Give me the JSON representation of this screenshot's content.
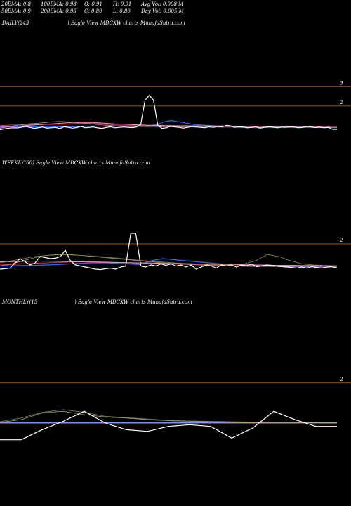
{
  "header": {
    "row1": [
      "20EMA: 0.8",
      "100EMA: 0.98",
      "O: 0.91",
      "H: 0.91",
      "Avg Vol: 0.008 M"
    ],
    "row2": [
      "50EMA: 0.9",
      "200EMA: 0.95",
      "C: 0.80",
      "L: 0.80",
      "Day Vol: 0.005 M"
    ]
  },
  "colors": {
    "background": "#000000",
    "price": "#ffffff",
    "reference_line": "#b8742a",
    "ema_blue": "#2f6bff",
    "ema_red": "#e0302f",
    "ema_pink": "#ff8fd0",
    "ema_gray": "#9a9a9a",
    "ema_olive": "#8c8c3a"
  },
  "chart_data": [
    {
      "type": "line",
      "panel": "daily",
      "title_left": "DAILY(243",
      "title_right": ") Eagle   View  MDCXW charts MunafaSutra.com",
      "y_ticks": [
        "3",
        "2"
      ],
      "reference_levels": [
        3,
        2
      ],
      "series": [
        {
          "role": "price",
          "values": [
            0.78,
            0.82,
            0.86,
            0.88,
            0.87,
            0.9,
            0.95,
            0.9,
            0.85,
            0.88,
            0.92,
            0.86,
            0.88,
            0.9,
            0.84,
            0.93,
            0.9,
            0.86,
            0.89,
            0.95,
            0.88,
            0.9,
            0.92,
            0.87,
            0.85,
            0.9,
            0.93,
            0.88,
            0.9,
            0.92,
            0.9,
            0.89,
            0.92,
            1.05,
            2.3,
            2.55,
            2.3,
            1.0,
            0.85,
            0.88,
            0.95,
            0.92,
            0.9,
            0.86,
            0.9,
            0.95,
            0.92,
            0.9,
            0.88,
            0.93,
            0.9,
            0.95,
            0.92,
            1.0,
            0.98,
            0.9,
            0.93,
            0.92,
            0.88,
            0.9,
            0.92,
            0.86,
            0.9,
            0.93,
            0.91,
            0.88,
            0.92,
            0.9,
            0.94,
            0.92,
            0.88,
            0.9,
            0.95,
            0.92,
            0.89,
            0.91,
            0.88,
            0.9,
            0.8,
            0.8
          ]
        },
        {
          "role": "ema_blue",
          "values": [
            0.95,
            0.94,
            0.93,
            0.93,
            0.92,
            0.92,
            0.92,
            0.91,
            0.91,
            0.92,
            0.92,
            0.93,
            0.93,
            0.93,
            0.94,
            0.95,
            0.96,
            0.97,
            0.96,
            0.97,
            0.97,
            0.97,
            0.96,
            0.96,
            0.96,
            0.96,
            0.98,
            1.02,
            1.1,
            1.2,
            1.25,
            1.2,
            1.15,
            1.1,
            1.05,
            1.02,
            1.0,
            0.99,
            0.97,
            0.97,
            0.96,
            0.96,
            0.95,
            0.95,
            0.95,
            0.95,
            0.94,
            0.94,
            0.94,
            0.93,
            0.93,
            0.93,
            0.92,
            0.92,
            0.92,
            0.91,
            0.9,
            0.9,
            0.89,
            0.88
          ]
        },
        {
          "role": "ema_red",
          "values": [
            0.99,
            1.0,
            1.02,
            1.02,
            1.03,
            1.03,
            1.04,
            1.04,
            1.05,
            1.05,
            1.06,
            1.06,
            1.08,
            1.1,
            1.12,
            1.13,
            1.12,
            1.1,
            1.07,
            1.05,
            1.03,
            1.02,
            1.01,
            1.0,
            1.0,
            0.99,
            0.99,
            0.99,
            0.98,
            0.98,
            0.98,
            0.98,
            0.97,
            0.97,
            0.97,
            0.97,
            0.96,
            0.96,
            0.96,
            0.96,
            0.96,
            0.96,
            0.96,
            0.95,
            0.95,
            0.95,
            0.95,
            0.95,
            0.95,
            0.95,
            0.95,
            0.95,
            0.95,
            0.95,
            0.95,
            0.95,
            0.95,
            0.95,
            0.95,
            0.95
          ]
        },
        {
          "role": "ema_pink",
          "values": [
            0.9,
            0.92,
            0.94,
            0.96,
            0.98,
            1.0,
            1.02,
            1.04,
            1.06,
            1.08,
            1.1,
            1.12,
            1.14,
            1.15,
            1.16,
            1.16,
            1.15,
            1.14,
            1.12,
            1.1,
            1.08,
            1.07,
            1.06,
            1.04,
            1.03,
            1.02,
            1.01,
            1.0,
            1.0,
            0.99,
            0.99,
            0.98,
            0.98,
            0.98,
            0.98,
            0.97,
            0.97,
            0.97,
            0.97,
            0.97,
            0.96,
            0.96,
            0.96,
            0.96,
            0.96,
            0.96,
            0.96,
            0.96,
            0.96,
            0.96,
            0.96,
            0.96,
            0.96,
            0.96,
            0.96,
            0.96,
            0.96,
            0.96,
            0.96,
            0.96
          ]
        },
        {
          "role": "ema_gray",
          "values": [
            0.85,
            0.9,
            0.95,
            1.0,
            1.05,
            1.08,
            1.1,
            1.12,
            1.15,
            1.18,
            1.2,
            1.2,
            1.18,
            1.15,
            1.12,
            1.1,
            1.08,
            1.05,
            1.02,
            1.0,
            0.98,
            0.97,
            0.96,
            0.95,
            0.95,
            0.94,
            0.94,
            0.94,
            0.93,
            0.93,
            0.93,
            0.93,
            0.92,
            0.92,
            0.92,
            0.92,
            0.92,
            0.91,
            0.91,
            0.91,
            0.91,
            0.91,
            0.9,
            0.9,
            0.9,
            0.9,
            0.9,
            0.9,
            0.9,
            0.9,
            0.9,
            0.9,
            0.9,
            0.9,
            0.9,
            0.9,
            0.9,
            0.9,
            0.9,
            0.9
          ]
        }
      ]
    },
    {
      "type": "line",
      "panel": "weekly",
      "title": "WEEKLY(68) Eagle   View  MDCXW charts MunafaSutra.com",
      "y_ticks": [
        "2"
      ],
      "reference_levels": [
        2
      ],
      "series": [
        {
          "role": "price",
          "values": [
            0.8,
            0.82,
            0.85,
            1.1,
            1.3,
            1.15,
            1.0,
            1.1,
            1.4,
            1.35,
            1.3,
            1.32,
            1.4,
            1.7,
            1.2,
            1.0,
            0.95,
            0.9,
            0.85,
            0.8,
            0.78,
            0.82,
            0.85,
            0.8,
            0.9,
            0.95,
            2.5,
            2.5,
            0.95,
            0.9,
            1.0,
            0.95,
            1.05,
            0.98,
            1.05,
            0.95,
            1.0,
            0.9,
            1.0,
            0.8,
            0.9,
            1.0,
            0.95,
            0.85,
            1.0,
            0.95,
            1.0,
            0.9,
            1.0,
            0.95,
            1.05,
            0.92,
            0.95,
            1.0,
            0.98,
            0.95,
            0.92,
            0.9,
            0.88,
            0.85,
            0.9,
            0.85,
            0.92,
            0.88,
            0.85,
            0.9,
            0.92,
            0.85
          ]
        },
        {
          "role": "ema_blue",
          "values": [
            0.95,
            0.96,
            0.97,
            0.98,
            1.0,
            1.02,
            1.05,
            1.08,
            1.1,
            1.1,
            1.08,
            1.05,
            1.02,
            1.2,
            1.3,
            1.25,
            1.2,
            1.15,
            1.1,
            1.05,
            1.02,
            1.0,
            0.99,
            0.98,
            0.97,
            0.96,
            0.95,
            0.95,
            0.94,
            0.94
          ]
        },
        {
          "role": "ema_red",
          "values": [
            1.0,
            1.02,
            1.05,
            1.08,
            1.1,
            1.12,
            1.14,
            1.15,
            1.15,
            1.14,
            1.12,
            1.1,
            1.08,
            1.06,
            1.05,
            1.04,
            1.03,
            1.02,
            1.01,
            1.0,
            1.0,
            0.99,
            0.99,
            0.98,
            0.98,
            0.97,
            0.97,
            0.97,
            0.96,
            0.96
          ]
        },
        {
          "role": "ema_pink",
          "values": [
            1.15,
            1.16,
            1.17,
            1.18,
            1.18,
            1.17,
            1.16,
            1.15,
            1.14,
            1.13,
            1.12,
            1.11,
            1.1,
            1.09,
            1.08,
            1.07,
            1.06,
            1.05,
            1.04,
            1.03,
            1.02,
            1.01,
            1.0,
            0.99,
            0.98,
            0.98,
            0.97,
            0.97,
            0.96,
            0.96
          ]
        },
        {
          "role": "ema_gray",
          "values": [
            0.95,
            1.05,
            1.2,
            1.35,
            1.45,
            1.5,
            1.5,
            1.45,
            1.4,
            1.35,
            1.3,
            1.25,
            1.2,
            1.15,
            1.1,
            1.06,
            1.03,
            1.0,
            0.98,
            0.96,
            0.95,
            0.94,
            0.93,
            0.93,
            0.92,
            0.92,
            0.91,
            0.91,
            0.9,
            0.9
          ]
        },
        {
          "role": "ema_olive",
          "values": [
            1.1,
            1.2,
            1.3,
            1.4,
            1.45,
            1.48,
            1.48,
            1.45,
            1.42,
            1.38,
            1.33,
            1.28,
            1.22,
            1.18,
            1.14,
            1.1,
            1.07,
            1.05,
            1.03,
            1.02,
            1.02,
            1.05,
            1.2,
            1.5,
            1.4,
            1.2,
            1.05,
            1.0,
            0.98,
            0.96
          ]
        }
      ]
    },
    {
      "type": "line",
      "panel": "monthly",
      "title_left": "MONTHLY(15",
      "title_right": ") Eagle   View  MDCXW charts MunafaSutra.com",
      "y_ticks": [
        "2"
      ],
      "reference_levels": [
        2
      ],
      "series": [
        {
          "role": "price",
          "values": [
            0.3,
            0.3,
            0.6,
            0.85,
            1.15,
            0.8,
            0.6,
            0.55,
            0.7,
            0.75,
            0.7,
            0.35,
            0.65,
            1.15,
            0.9,
            0.7,
            0.7
          ]
        },
        {
          "role": "ema_blue",
          "values": [
            0.82,
            0.82,
            0.82,
            0.82,
            0.82,
            0.82,
            0.82,
            0.82,
            0.82,
            0.82,
            0.82,
            0.82,
            0.82,
            0.82,
            0.82,
            0.82,
            0.82
          ]
        },
        {
          "role": "ema_gray",
          "values": [
            0.82,
            0.9,
            1.1,
            1.15,
            1.05,
            0.98,
            0.95,
            0.9,
            0.87,
            0.85,
            0.84,
            0.83,
            0.82,
            0.82,
            0.82,
            0.82,
            0.82
          ]
        },
        {
          "role": "ema_olive",
          "values": [
            0.84,
            0.95,
            1.12,
            1.2,
            1.12,
            1.0,
            0.96,
            0.92,
            0.88,
            0.86,
            0.85,
            0.84,
            0.83,
            0.82,
            0.82,
            0.82,
            0.82
          ]
        },
        {
          "role": "ema_pink",
          "values": [
            0.8,
            0.8,
            0.8,
            0.8,
            0.8,
            0.8,
            0.8,
            0.8,
            0.8,
            0.8,
            0.8,
            0.8,
            0.8,
            0.8,
            0.8,
            0.8,
            0.8
          ]
        }
      ]
    }
  ]
}
